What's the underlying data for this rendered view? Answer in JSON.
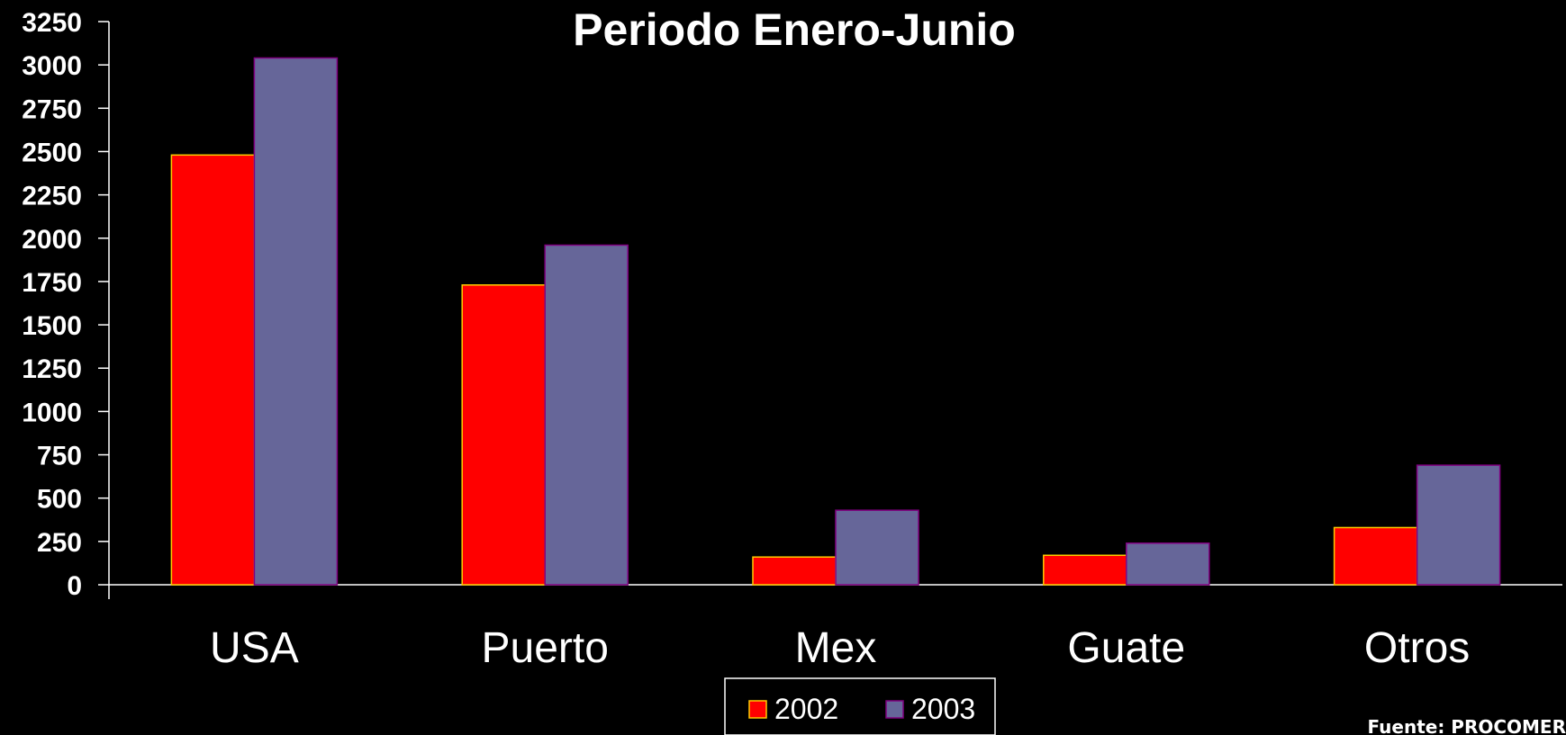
{
  "chart_data": {
    "type": "bar",
    "title": "Periodo Enero-Junio",
    "categories": [
      "USA",
      "Puerto",
      "Mex",
      "Guate",
      "Otros"
    ],
    "series": [
      {
        "name": "2002",
        "values": [
          2480,
          1730,
          160,
          170,
          330
        ],
        "color": "#ff0000",
        "edge": "#ffcc00"
      },
      {
        "name": "2003",
        "values": [
          3040,
          1960,
          430,
          240,
          690
        ],
        "color": "#666699",
        "edge": "#800080"
      }
    ],
    "ylim": [
      0,
      3250
    ],
    "yticks": [
      0,
      250,
      500,
      750,
      1000,
      1250,
      1500,
      1750,
      2000,
      2250,
      2500,
      2750,
      3000,
      3250
    ],
    "xlabel": "",
    "ylabel": "",
    "grid": false,
    "legend": "bottom-center",
    "source_note": "Fuente:  PROCOMER"
  },
  "colors": {
    "background": "#000000",
    "axis": "#ffffff",
    "text": "#ffffff"
  }
}
